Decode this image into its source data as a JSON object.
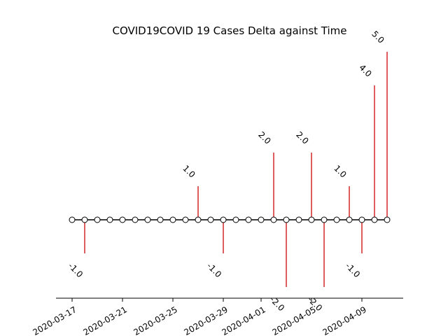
{
  "chart_data": {
    "type": "stem",
    "title": "COVID19COVID 19 Cases Delta against Time",
    "xlabel": "",
    "ylabel": "",
    "x": [
      "2020-03-17",
      "2020-03-18",
      "2020-03-19",
      "2020-03-20",
      "2020-03-21",
      "2020-03-22",
      "2020-03-23",
      "2020-03-24",
      "2020-03-25",
      "2020-03-26",
      "2020-03-27",
      "2020-03-28",
      "2020-03-29",
      "2020-03-30",
      "2020-03-31",
      "2020-04-01",
      "2020-04-02",
      "2020-04-03",
      "2020-04-04",
      "2020-04-05",
      "2020-04-06",
      "2020-04-07",
      "2020-04-08",
      "2020-04-09",
      "2020-04-10",
      "2020-04-11"
    ],
    "values": [
      0,
      -1,
      0,
      0,
      0,
      0,
      0,
      0,
      0,
      0,
      1,
      0,
      -1,
      0,
      0,
      0,
      2,
      -2,
      0,
      2,
      -2,
      0,
      1,
      -1,
      4,
      5
    ],
    "data_labels": [
      "",
      "-1.0",
      "",
      "",
      "",
      "",
      "",
      "",
      "",
      "",
      "1.0",
      "",
      "-1.0",
      "",
      "",
      "",
      "2.0",
      "-2.0",
      "",
      "2.0",
      "-2.0",
      "",
      "1.0",
      "-1.0",
      "4.0",
      "5.0"
    ],
    "x_tick_labels": [
      "2020-03-17",
      "2020-03-21",
      "2020-03-25",
      "2020-03-29",
      "2020-04-01",
      "2020-04-05",
      "2020-04-09"
    ],
    "ylim": [
      -2.4,
      5.2
    ],
    "grid": false,
    "colors": {
      "stem": "#d62728",
      "baseline": "#000000",
      "marker_face": "#ffffff"
    }
  }
}
